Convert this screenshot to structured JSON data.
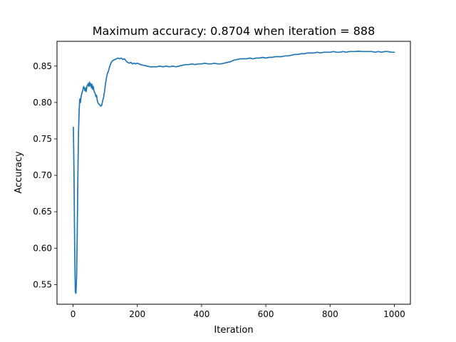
{
  "chart_data": {
    "type": "line",
    "title": "Maximum accuracy: 0.8704 when iteration = 888",
    "xlabel": "Iteration",
    "ylabel": "Accuracy",
    "xlim": [
      -50,
      1050
    ],
    "ylim": [
      0.523,
      0.884
    ],
    "xticks": [
      0,
      200,
      400,
      600,
      800,
      1000
    ],
    "yticks": [
      0.55,
      0.6,
      0.65,
      0.7,
      0.75,
      0.8,
      0.85
    ],
    "ytick_labels": [
      "0.55",
      "0.60",
      "0.65",
      "0.70",
      "0.75",
      "0.80",
      "0.85"
    ],
    "grid": false,
    "series_color": "#1f77b4",
    "series": [
      {
        "x": [
          1,
          3,
          5,
          7,
          9,
          11,
          13,
          15,
          17,
          19,
          21,
          23,
          25,
          27,
          29,
          31,
          33,
          35,
          37,
          39,
          41,
          43,
          45,
          47,
          49,
          51,
          53,
          55,
          57,
          59,
          61,
          63,
          65,
          67,
          69,
          71,
          73,
          75,
          77,
          80,
          83,
          86,
          89,
          92,
          95,
          98,
          101,
          104,
          107,
          110,
          113,
          116,
          120,
          125,
          130,
          135,
          140,
          145,
          150,
          155,
          160,
          165,
          170,
          175,
          180,
          185,
          190,
          195,
          200,
          210,
          220,
          230,
          240,
          250,
          260,
          270,
          280,
          290,
          300,
          310,
          320,
          330,
          340,
          350,
          360,
          370,
          380,
          390,
          400,
          410,
          420,
          430,
          440,
          450,
          460,
          470,
          480,
          490,
          500,
          510,
          520,
          530,
          540,
          550,
          560,
          570,
          580,
          590,
          600,
          610,
          620,
          630,
          640,
          650,
          660,
          670,
          680,
          690,
          700,
          710,
          720,
          730,
          740,
          750,
          760,
          770,
          780,
          790,
          800,
          810,
          820,
          830,
          840,
          850,
          860,
          870,
          880,
          888,
          900,
          910,
          920,
          930,
          940,
          950,
          960,
          970,
          980,
          990,
          1000
        ],
        "y": [
          0.766,
          0.7,
          0.6,
          0.54,
          0.538,
          0.56,
          0.62,
          0.7,
          0.76,
          0.79,
          0.805,
          0.8,
          0.808,
          0.812,
          0.815,
          0.818,
          0.822,
          0.82,
          0.816,
          0.82,
          0.815,
          0.822,
          0.824,
          0.826,
          0.822,
          0.828,
          0.823,
          0.826,
          0.82,
          0.825,
          0.818,
          0.822,
          0.816,
          0.814,
          0.812,
          0.808,
          0.81,
          0.804,
          0.8,
          0.798,
          0.797,
          0.795,
          0.796,
          0.802,
          0.807,
          0.815,
          0.826,
          0.834,
          0.84,
          0.843,
          0.848,
          0.852,
          0.856,
          0.858,
          0.859,
          0.86,
          0.861,
          0.86,
          0.861,
          0.859,
          0.86,
          0.857,
          0.855,
          0.854,
          0.855,
          0.853,
          0.854,
          0.853,
          0.854,
          0.852,
          0.851,
          0.85,
          0.849,
          0.849,
          0.849,
          0.85,
          0.849,
          0.85,
          0.849,
          0.85,
          0.849,
          0.85,
          0.851,
          0.852,
          0.852,
          0.853,
          0.852,
          0.853,
          0.853,
          0.854,
          0.853,
          0.853,
          0.854,
          0.853,
          0.853,
          0.854,
          0.855,
          0.856,
          0.858,
          0.859,
          0.86,
          0.86,
          0.86,
          0.861,
          0.86,
          0.861,
          0.861,
          0.862,
          0.861,
          0.862,
          0.862,
          0.863,
          0.863,
          0.863,
          0.864,
          0.864,
          0.865,
          0.866,
          0.866,
          0.867,
          0.867,
          0.868,
          0.868,
          0.868,
          0.869,
          0.868,
          0.869,
          0.869,
          0.869,
          0.87,
          0.869,
          0.869,
          0.87,
          0.869,
          0.87,
          0.87,
          0.87,
          0.8704,
          0.87,
          0.87,
          0.87,
          0.87,
          0.869,
          0.87,
          0.869,
          0.87,
          0.87,
          0.869,
          0.869
        ]
      }
    ]
  }
}
